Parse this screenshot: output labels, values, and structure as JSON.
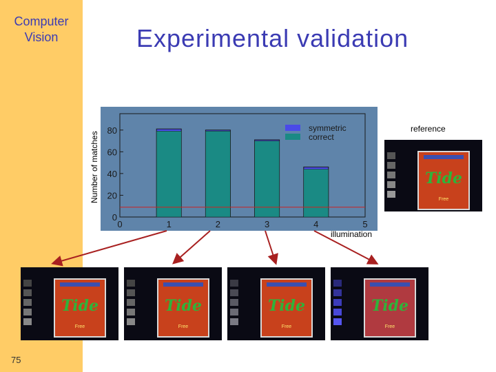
{
  "sidebar": {
    "title_line1": "Computer",
    "title_line2": "Vision",
    "slide_number": "75",
    "color": "#ffcc66"
  },
  "slide": {
    "title": "Experimental validation"
  },
  "labels": {
    "reference": "reference",
    "illumination": "illumination"
  },
  "photos": {
    "brand": "Tide",
    "sub": "Free"
  },
  "chart_data": {
    "type": "bar",
    "x": [
      1,
      2,
      3,
      4
    ],
    "series": [
      {
        "name": "symmetric",
        "values": [
          81,
          80,
          71,
          46
        ],
        "color": "#4a4ae8"
      },
      {
        "name": "correct",
        "values": [
          79,
          79,
          70,
          44
        ],
        "color": "#1a8a84"
      }
    ],
    "xlabel": "illumination",
    "ylabel": "Number of matches",
    "xlim": [
      0,
      5
    ],
    "ylim": [
      0,
      90
    ],
    "xticks": [
      "0",
      "1",
      "2",
      "3",
      "4",
      "5"
    ],
    "yticks": [
      "0",
      "20",
      "40",
      "60",
      "80"
    ],
    "reference_line": 9,
    "reference_line_color": "#cc2222",
    "plot_background": "#5f84aa",
    "legend_position": "top-right",
    "grid": false
  }
}
